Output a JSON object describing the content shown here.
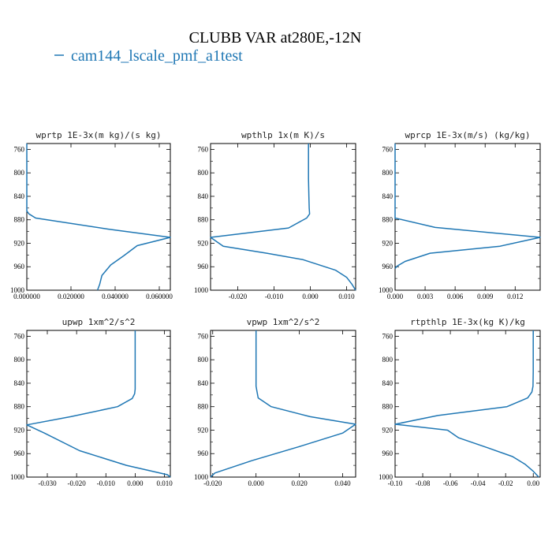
{
  "figure": {
    "title": "CLUBB VAR at280E,-12N",
    "legend_label": "cam144_lscale_pmf_a1test",
    "line_color": "#1f77b4"
  },
  "chart_data": [
    {
      "type": "line",
      "title": "wprtp  1E-3x(m kg)/(s kg)",
      "xlim": [
        0.0,
        0.065
      ],
      "ylim": [
        1000,
        750
      ],
      "xticks": [
        0.0,
        0.02,
        0.04,
        0.06
      ],
      "xtick_labels": [
        "0.000000",
        "0.020000",
        "0.040000",
        "0.060000"
      ],
      "yticks": [
        760,
        800,
        840,
        880,
        920,
        960,
        1000
      ],
      "ytick_labels": [
        "760",
        "800",
        "840",
        "880",
        "920",
        "960",
        "1000"
      ],
      "series": [
        {
          "x": [
            0.0,
            0.0,
            0.0,
            0.0,
            0.0,
            0.0,
            0.0,
            0.0,
            0.001,
            0.004,
            0.037,
            0.065,
            0.05,
            0.044,
            0.038,
            0.034,
            0.033,
            0.032
          ],
          "y": [
            750,
            760,
            780,
            800,
            820,
            840,
            855,
            865,
            870,
            877,
            896,
            910,
            924,
            941,
            957,
            975,
            990,
            1000
          ]
        }
      ]
    },
    {
      "type": "line",
      "title": "wpthlp  1x(m K)/s",
      "xlim": [
        -0.0275,
        0.0125
      ],
      "ylim": [
        1000,
        750
      ],
      "xticks": [
        -0.02,
        -0.01,
        0.0,
        0.01
      ],
      "xtick_labels": [
        "-0.020",
        "-0.010",
        "0.000",
        "0.010"
      ],
      "yticks": [
        760,
        800,
        840,
        880,
        920,
        960,
        1000
      ],
      "ytick_labels": [
        "760",
        "800",
        "840",
        "880",
        "920",
        "960",
        "1000"
      ],
      "series": [
        {
          "x": [
            -0.0005,
            -0.0005,
            -0.0005,
            -0.0004,
            -0.0003,
            -0.0002,
            -0.001,
            -0.006,
            -0.0275,
            -0.024,
            -0.012,
            -0.002,
            0.007,
            0.01,
            0.0115,
            0.0125
          ],
          "y": [
            750,
            780,
            810,
            840,
            860,
            870,
            877,
            894,
            910,
            925,
            937,
            948,
            966,
            978,
            990,
            1000
          ]
        }
      ]
    },
    {
      "type": "line",
      "title": "wprcp  1E-3x(m/s) (kg/kg)",
      "xlim": [
        0.0,
        0.0145
      ],
      "ylim": [
        1000,
        750
      ],
      "xticks": [
        0.0,
        0.003,
        0.006,
        0.009,
        0.012
      ],
      "xtick_labels": [
        "0.000",
        "0.003",
        "0.006",
        "0.009",
        "0.012"
      ],
      "yticks": [
        760,
        800,
        840,
        880,
        920,
        960,
        1000
      ],
      "ytick_labels": [
        "760",
        "800",
        "840",
        "880",
        "920",
        "960",
        "1000"
      ],
      "series": [
        {
          "x": [
            0.0,
            0.0,
            0.0,
            0.0,
            0.0,
            0.004,
            0.0145,
            0.0105,
            0.0035,
            0.001,
            0.0002,
            0.0
          ],
          "y": [
            750,
            800,
            850,
            870,
            877,
            893,
            910,
            925,
            937,
            951,
            959,
            963
          ]
        }
      ]
    },
    {
      "type": "line",
      "title": "upwp  1xm^2/s^2",
      "xlim": [
        -0.037,
        0.012
      ],
      "ylim": [
        1000,
        750
      ],
      "xticks": [
        -0.03,
        -0.02,
        -0.01,
        0.0,
        0.01
      ],
      "xtick_labels": [
        "-0.030",
        "-0.020",
        "-0.010",
        "0.000",
        "0.010"
      ],
      "yticks": [
        760,
        800,
        840,
        880,
        920,
        960,
        1000
      ],
      "ytick_labels": [
        "760",
        "800",
        "840",
        "880",
        "920",
        "960",
        "1000"
      ],
      "series": [
        {
          "x": [
            0.0,
            0.0,
            0.0,
            0.0,
            0.0,
            -0.0002,
            -0.001,
            -0.006,
            -0.022,
            -0.037,
            -0.031,
            -0.019,
            -0.003,
            0.011,
            0.012
          ],
          "y": [
            750,
            780,
            810,
            840,
            850,
            858,
            866,
            880,
            897,
            911,
            925,
            955,
            980,
            996,
            1000
          ]
        }
      ]
    },
    {
      "type": "line",
      "title": "vpwp  1xm^2/s^2",
      "xlim": [
        -0.021,
        0.046
      ],
      "ylim": [
        1000,
        750
      ],
      "xticks": [
        -0.02,
        0.0,
        0.02,
        0.04
      ],
      "xtick_labels": [
        "-0.020",
        "0.000",
        "0.020",
        "0.040"
      ],
      "yticks": [
        760,
        800,
        840,
        880,
        920,
        960,
        1000
      ],
      "ytick_labels": [
        "760",
        "800",
        "840",
        "880",
        "920",
        "960",
        "1000"
      ],
      "series": [
        {
          "x": [
            0.0,
            0.0,
            0.0,
            0.0,
            0.0005,
            0.001,
            0.007,
            0.025,
            0.046,
            0.04,
            0.02,
            -0.002,
            -0.019,
            -0.021
          ],
          "y": [
            750,
            790,
            820,
            845,
            855,
            865,
            880,
            897,
            910,
            925,
            948,
            972,
            993,
            1000
          ]
        }
      ]
    },
    {
      "type": "line",
      "title": "rtpthlp  1E-3x(kg K)/kg",
      "xlim": [
        -0.1,
        0.005
      ],
      "ylim": [
        1000,
        750
      ],
      "xticks": [
        -0.1,
        -0.08,
        -0.06,
        -0.04,
        -0.02,
        0.0
      ],
      "xtick_labels": [
        "-0.10",
        "-0.08",
        "-0.06",
        "-0.04",
        "-0.02",
        "0.00"
      ],
      "yticks": [
        760,
        800,
        840,
        880,
        920,
        960,
        1000
      ],
      "ytick_labels": [
        "760",
        "800",
        "840",
        "880",
        "920",
        "960",
        "1000"
      ],
      "series": [
        {
          "x": [
            0.0,
            0.0,
            0.0,
            -0.0002,
            -0.001,
            -0.004,
            -0.019,
            -0.069,
            -0.1,
            -0.062,
            -0.054,
            -0.033,
            -0.015,
            -0.006,
            0.0,
            0.004
          ],
          "y": [
            750,
            790,
            820,
            845,
            855,
            865,
            880,
            895,
            910,
            920,
            933,
            950,
            965,
            978,
            990,
            1000
          ]
        }
      ]
    }
  ]
}
